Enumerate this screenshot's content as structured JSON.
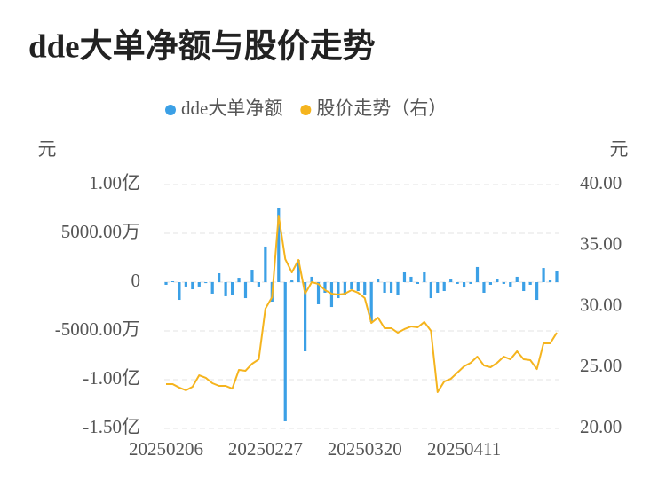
{
  "chart_data": {
    "type": "bar-line",
    "title": "dde大单净额与股价走势",
    "ylabel": "元",
    "y2label": "元",
    "legend": "top",
    "grid": true,
    "categories": [
      "20250206",
      null,
      null,
      null,
      null,
      null,
      null,
      null,
      null,
      null,
      null,
      null,
      null,
      null,
      null,
      "20250227",
      null,
      null,
      null,
      null,
      null,
      null,
      null,
      null,
      null,
      null,
      null,
      null,
      null,
      null,
      "20250320",
      null,
      null,
      null,
      null,
      null,
      null,
      null,
      null,
      null,
      null,
      null,
      null,
      null,
      null,
      "20250411",
      null,
      null,
      null,
      null,
      null,
      null,
      null,
      null,
      null,
      null,
      null,
      null,
      null,
      null
    ],
    "series": [
      {
        "name": "dde大单净额",
        "color": "#3ba0e6",
        "type": "bar",
        "values": [
          -270,
          90,
          -1820,
          -450,
          -730,
          -450,
          -100,
          -1180,
          910,
          -1450,
          -1360,
          450,
          -1640,
          1270,
          -450,
          3640,
          -2000,
          7550,
          -14270,
          180,
          2270,
          -7090,
          550,
          -2270,
          -1090,
          -2550,
          -1640,
          -1270,
          -730,
          -910,
          -1270,
          -4090,
          270,
          -1090,
          -1090,
          -1360,
          1000,
          550,
          -180,
          1000,
          -1640,
          -1090,
          -910,
          270,
          -180,
          -550,
          -180,
          1550,
          -1090,
          -270,
          360,
          -180,
          -450,
          550,
          -910,
          -270,
          -1820,
          1450,
          180,
          1090
        ]
      },
      {
        "name": "股价走势（右）",
        "color": "#f5b41e",
        "type": "line",
        "axis": "y2",
        "values": [
          23.64,
          23.64,
          23.35,
          23.13,
          23.42,
          24.36,
          24.15,
          23.71,
          23.49,
          23.49,
          23.27,
          24.8,
          24.73,
          25.31,
          25.67,
          29.82,
          30.76,
          37.45,
          33.89,
          32.8,
          33.82,
          31.05,
          32.0,
          31.85,
          31.35,
          31.05,
          30.98,
          31.05,
          31.35,
          31.13,
          30.69,
          28.65,
          29.09,
          28.22,
          28.22,
          27.85,
          28.15,
          28.36,
          28.29,
          28.73,
          28.0,
          22.98,
          23.85,
          24.07,
          24.58,
          25.09,
          25.38,
          25.89,
          25.16,
          25.02,
          25.38,
          25.89,
          25.67,
          26.33,
          25.67,
          25.6,
          24.87,
          26.98,
          26.98,
          27.85
        ]
      }
    ],
    "ylim": [
      -15000,
      10000
    ],
    "yticks": [
      {
        "value": -15000,
        "label": "-1.50亿"
      },
      {
        "value": -10000,
        "label": "-1.00亿"
      },
      {
        "value": -5000,
        "label": "-5000.00万"
      },
      0,
      {
        "value": 5000,
        "label": "5000.00万"
      },
      {
        "value": 10000,
        "label": "1.00亿"
      }
    ],
    "y2lim": [
      20,
      40
    ],
    "y2ticks": [
      {
        "value": 20,
        "label": "20.00"
      },
      {
        "value": 25,
        "label": "25.00"
      },
      {
        "value": 30,
        "label": "30.00"
      },
      {
        "value": 35,
        "label": "35.00"
      },
      {
        "value": 40,
        "label": "40.00"
      }
    ]
  }
}
